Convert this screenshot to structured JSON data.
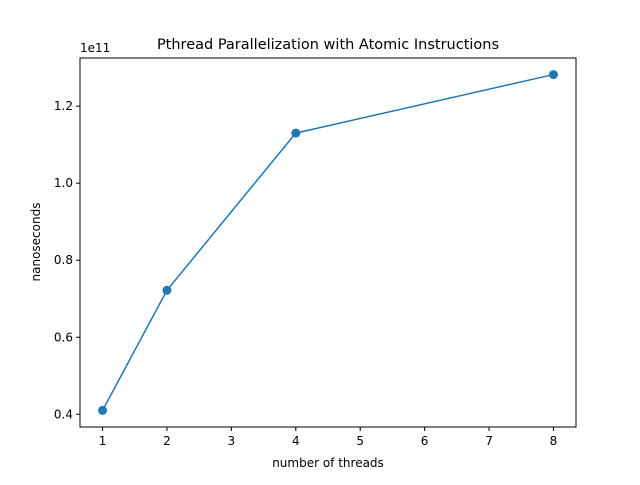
{
  "chart_data": {
    "type": "line",
    "title": "Pthread Parallelization with Atomic Instructions",
    "xlabel": "number of threads",
    "ylabel": "nanoseconds",
    "y_offset_label": "1e11",
    "x": [
      1,
      2,
      4,
      8
    ],
    "series": [
      {
        "values": [
          0.41,
          0.722,
          1.13,
          1.282
        ],
        "color": "#1f77b4",
        "marker": "circle"
      }
    ],
    "xlim": [
      0.65,
      8.35
    ],
    "ylim": [
      0.367,
      1.325
    ],
    "x_ticks": [
      1,
      2,
      3,
      4,
      5,
      6,
      7,
      8
    ],
    "y_ticks": [
      0.4,
      0.6,
      0.8,
      1.0,
      1.2
    ],
    "y_tick_labels": [
      "0.4",
      "0.6",
      "0.8",
      "1.0",
      "1.2"
    ],
    "grid": false,
    "legend": "none"
  }
}
